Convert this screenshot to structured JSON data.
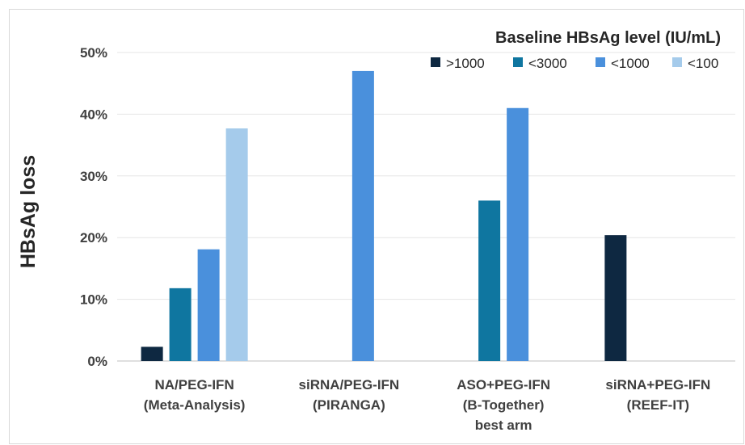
{
  "chart_data": {
    "type": "bar",
    "ylabel": "HBsAg loss",
    "ylim": [
      0,
      50
    ],
    "yticks": [
      "0%",
      "10%",
      "20%",
      "30%",
      "40%",
      "50%"
    ],
    "legend_title": "Baseline HBsAg level (IU/mL)",
    "legend_position": "top-right",
    "grid": true,
    "categories": [
      [
        "NA/PEG-IFN",
        "(Meta-Analysis)"
      ],
      [
        "siRNA/PEG-IFN",
        "(PIRANGA)"
      ],
      [
        "ASO+PEG-IFN",
        "(B-Together)",
        "best arm"
      ],
      [
        "siRNA+PEG-IFN",
        "(REEF-IT)"
      ]
    ],
    "series": [
      {
        "name": ">1000",
        "color": "#0e2841",
        "values": [
          2.3,
          null,
          null,
          20.4
        ]
      },
      {
        "name": "<3000",
        "color": "#0f76a0",
        "values": [
          11.8,
          null,
          26.0,
          null
        ]
      },
      {
        "name": "<1000",
        "color": "#4a90dc",
        "values": [
          18.1,
          47.0,
          41.0,
          null
        ]
      },
      {
        "name": "<100",
        "color": "#a5cbeb",
        "values": [
          37.7,
          null,
          null,
          null
        ]
      }
    ]
  }
}
